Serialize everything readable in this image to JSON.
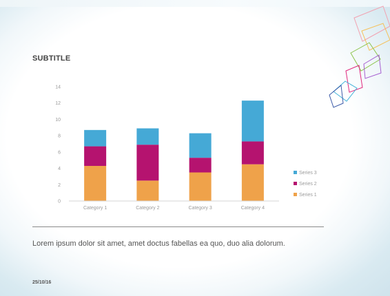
{
  "slide": {
    "subtitle": "SUBTITLE",
    "body_text": "Lorem ipsum dolor sit amet, amet doctus fabellas ea quo, duo alia dolorum.",
    "date": "25/10/16"
  },
  "decoration": {
    "name": "abstract-squares-graphic",
    "colors": [
      "#f2a1b0",
      "#f5c15a",
      "#8bc34a",
      "#a65fd0",
      "#e0277d",
      "#45b4d9",
      "#3b5aa8"
    ]
  },
  "chart_data": {
    "type": "bar",
    "stacked": true,
    "categories": [
      "Category 1",
      "Category 2",
      "Category 3",
      "Category 4"
    ],
    "series": [
      {
        "name": "Series 1",
        "values": [
          4.3,
          2.5,
          3.5,
          4.5
        ],
        "color": "#efa24a"
      },
      {
        "name": "Series 2",
        "values": [
          2.4,
          4.4,
          1.8,
          2.8
        ],
        "color": "#b5136f"
      },
      {
        "name": "Series 3",
        "values": [
          2.0,
          2.0,
          3.0,
          5.0
        ],
        "color": "#45a9d6"
      }
    ],
    "ylim": [
      0,
      14
    ],
    "yticks": [
      "0",
      "2",
      "4",
      "6",
      "8",
      "10",
      "12",
      "14"
    ],
    "title": "",
    "xlabel": "",
    "ylabel": "",
    "grid": false,
    "legend_position": "right",
    "legend_order": [
      "Series 3",
      "Series 2",
      "Series 1"
    ]
  }
}
